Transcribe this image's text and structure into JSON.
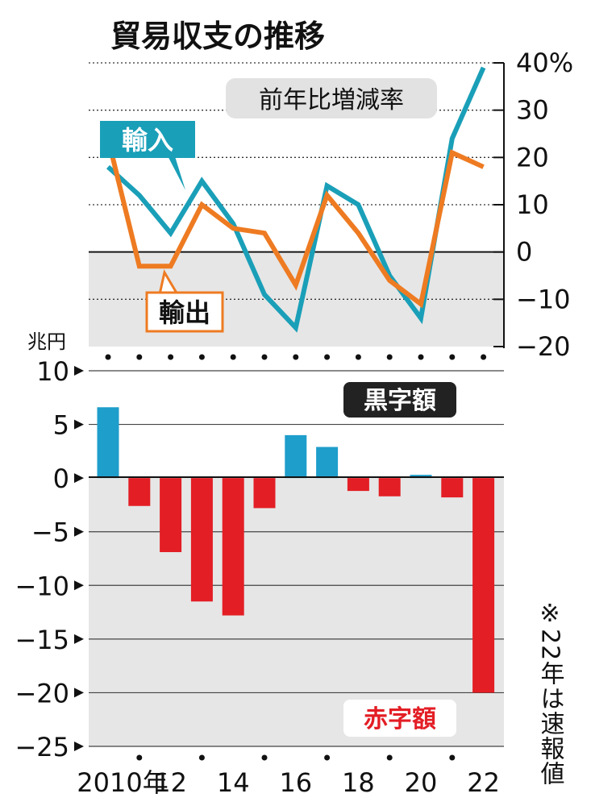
{
  "title": "貿易収支の推移",
  "colors": {
    "import": "#1a9fb8",
    "export": "#ee7b22",
    "surplus": "#1e9ecb",
    "deficit": "#e31e25",
    "shade": "#e6e6e6"
  },
  "chart_data": [
    {
      "type": "line",
      "label": "前年比増減率",
      "ylim": [
        -20,
        40
      ],
      "yticks": [
        "40%",
        "30",
        "20",
        "10",
        "0",
        "−10",
        "−20"
      ],
      "x": [
        2010,
        2011,
        2012,
        2013,
        2014,
        2015,
        2016,
        2017,
        2018,
        2019,
        2020,
        2021,
        2022
      ],
      "series": [
        {
          "name": "輸入",
          "values": [
            18,
            12,
            4,
            15,
            6,
            -9,
            -16,
            14,
            10,
            -5,
            -14,
            24,
            39
          ]
        },
        {
          "name": "輸出",
          "values": [
            24,
            -3,
            -3,
            10,
            5,
            4,
            -7,
            12,
            4,
            -6,
            -11,
            21,
            18
          ]
        }
      ],
      "grid": true
    },
    {
      "type": "bar",
      "unit": "兆円",
      "ylim": [
        -25,
        10
      ],
      "yticks": [
        "10",
        "5",
        "0",
        "−5",
        "−10",
        "−15",
        "−20",
        "−25"
      ],
      "categories": [
        2010,
        2011,
        2012,
        2013,
        2014,
        2015,
        2016,
        2017,
        2018,
        2019,
        2020,
        2021,
        2022
      ],
      "values": [
        6.6,
        -2.6,
        -6.9,
        -11.5,
        -12.8,
        -2.8,
        4.0,
        2.9,
        -1.2,
        -1.7,
        0.3,
        -1.8,
        -20.0
      ],
      "xtick_labels": [
        "2010年",
        "12",
        "14",
        "16",
        "18",
        "20",
        "22"
      ],
      "surplus_label": "黒字額",
      "deficit_label": "赤字額"
    }
  ],
  "note": "※22年は速報値"
}
